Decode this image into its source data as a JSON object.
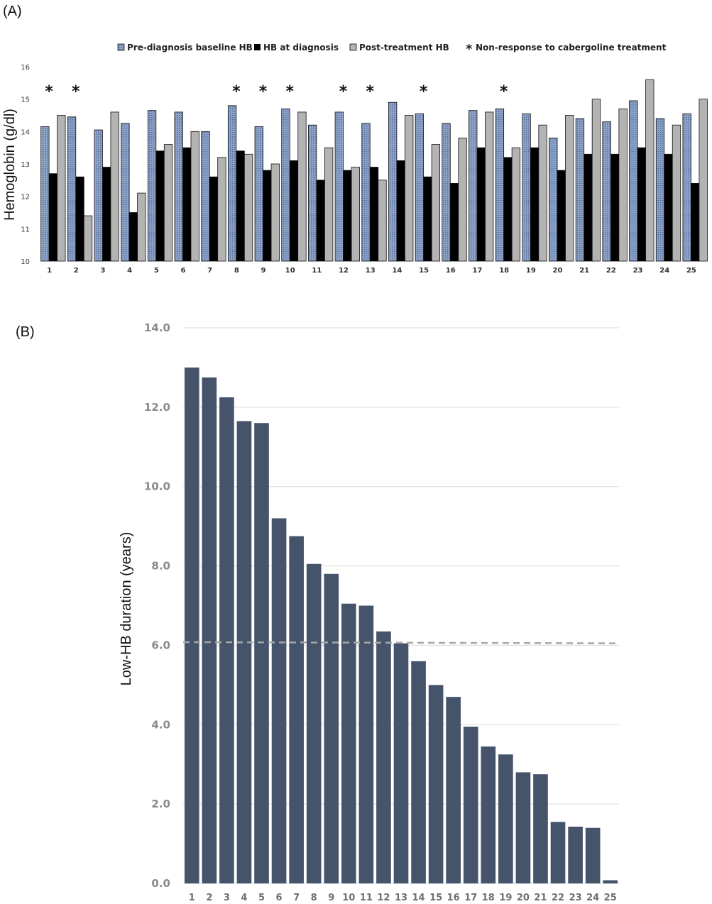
{
  "figure": {
    "panel_a_label": "(A)",
    "panel_b_label": "(B)"
  },
  "colors": {
    "baseline_fill": "#8fa3c6",
    "diagnosis_fill": "#000000",
    "post_fill": "#b3b3b3",
    "bar_b": "#45546b",
    "mean_line": "#a6a6a6",
    "grid_b": "#d9d9d9"
  },
  "chart_data": [
    {
      "type": "bar",
      "title": "",
      "xlabel": "",
      "ylabel": "Hemoglobin (g/dl)",
      "ylim": [
        10,
        16
      ],
      "yticks": [
        "10",
        "11",
        "12",
        "13",
        "14",
        "15",
        "16"
      ],
      "grid": false,
      "legend_position": "top",
      "categories": [
        "1",
        "2",
        "3",
        "4",
        "5",
        "6",
        "7",
        "8",
        "9",
        "10",
        "11",
        "12",
        "13",
        "14",
        "15",
        "16",
        "17",
        "18",
        "19",
        "20",
        "21",
        "22",
        "23",
        "24",
        "25"
      ],
      "series": [
        {
          "name": "Pre-diagnosis baseline HB",
          "values": [
            14.15,
            14.45,
            14.05,
            14.25,
            14.65,
            14.6,
            14.0,
            14.8,
            14.15,
            14.7,
            14.2,
            14.6,
            14.25,
            14.9,
            14.55,
            14.25,
            14.65,
            14.7,
            14.55,
            13.8,
            14.4,
            14.3,
            14.95,
            14.4,
            14.55
          ]
        },
        {
          "name": "HB at diagnosis",
          "values": [
            12.7,
            12.6,
            12.9,
            11.5,
            13.4,
            13.5,
            12.6,
            13.4,
            12.8,
            13.1,
            12.5,
            12.8,
            12.9,
            13.1,
            12.6,
            12.4,
            13.5,
            13.2,
            13.5,
            12.8,
            13.3,
            13.3,
            13.5,
            13.3,
            12.4
          ]
        },
        {
          "name": "Post-treatment HB",
          "values": [
            14.5,
            11.4,
            14.6,
            12.1,
            13.6,
            14.0,
            13.2,
            13.3,
            13.0,
            14.6,
            13.5,
            12.9,
            12.5,
            14.5,
            13.6,
            13.8,
            14.6,
            13.5,
            14.2,
            14.5,
            15.0,
            14.7,
            15.6,
            14.2,
            15.0
          ]
        }
      ],
      "annotation_symbol": "*",
      "annotation_legend": "Non-response to cabergoline treatment",
      "non_responders": [
        "1",
        "2",
        "8",
        "9",
        "10",
        "12",
        "13",
        "15",
        "18"
      ]
    },
    {
      "type": "bar",
      "title": "",
      "xlabel": "",
      "ylabel": "Low-HB duration (years)",
      "ylim": [
        0,
        14
      ],
      "yticks": [
        "0.0",
        "2.0",
        "4.0",
        "6.0",
        "8.0",
        "10.0",
        "12.0",
        "14.0"
      ],
      "grid": true,
      "categories": [
        "1",
        "2",
        "3",
        "4",
        "5",
        "6",
        "7",
        "8",
        "9",
        "10",
        "11",
        "12",
        "13",
        "14",
        "15",
        "16",
        "17",
        "18",
        "19",
        "20",
        "21",
        "22",
        "23",
        "24",
        "25"
      ],
      "values": [
        13.0,
        12.75,
        12.25,
        11.65,
        11.6,
        9.2,
        8.75,
        8.05,
        7.8,
        7.05,
        7.0,
        6.35,
        6.05,
        5.6,
        5.0,
        4.7,
        3.95,
        3.45,
        3.25,
        2.8,
        2.75,
        1.55,
        1.43,
        1.4,
        0.08
      ],
      "reference_line": {
        "style": "dashed",
        "y_start": 6.08,
        "y_end": 6.05
      }
    }
  ]
}
